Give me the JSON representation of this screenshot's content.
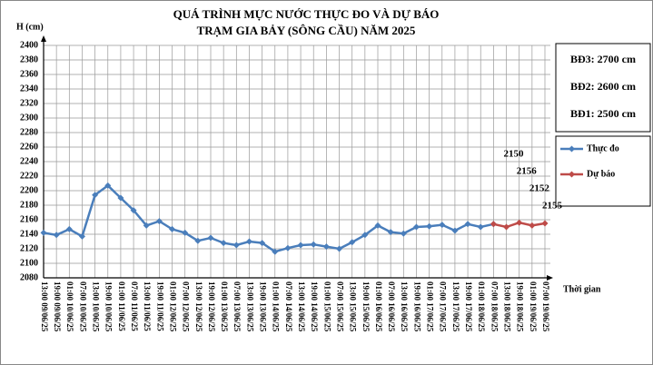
{
  "chart_data": {
    "type": "line",
    "title": "QUÁ TRÌNH MỰC NƯỚC THỰC ĐO VÀ DỰ BÁO",
    "subtitle": "TRẠM GIA BẢY (SÔNG CẦU) NĂM 2025",
    "ylabel": "H (cm)",
    "xlabel": "Thời gian",
    "alert_levels": [
      "BĐ3: 2700 cm",
      "BĐ2: 2600 cm",
      "BĐ1: 2500 cm"
    ],
    "categories": [
      "13:00 09/06/25",
      "19:00 09/06/25",
      "01:00 10/06/25",
      "07:00 10/06/25",
      "13:00 10/06/25",
      "19:00 10/06/25",
      "01:00 11/06/25",
      "07:00 11/06/25",
      "13:00 11/06/25",
      "19:00 11/06/25",
      "01:00 12/06/25",
      "07:00 12/06/25",
      "13:00 12/06/25",
      "19:00 12/06/25",
      "01:00 13/06/25",
      "07:00 13/06/25",
      "13:00 13/06/25",
      "19:00 13/06/25",
      "01:00 14/06/25",
      "07:00 14/06/25",
      "13:00 14/06/25",
      "19:00 14/06/25",
      "01:00 15/06/25",
      "07:00 15/06/25",
      "13:00 15/06/25",
      "19:00 15/06/25",
      "01:00 16/06/25",
      "07:00 16/06/25",
      "13:00 16/06/25",
      "19:00 16/06/25",
      "01:00 17/06/25",
      "07:00 17/06/25",
      "13:00 17/06/25",
      "19:00 17/06/25",
      "01:00 18/06/25",
      "07:00 18/06/25",
      "13:00 18/06/25",
      "19:00 18/06/25",
      "01:00 19/06/25",
      "07:00 19/06/25"
    ],
    "series": [
      {
        "name": "Thực đo",
        "color": "#4a7ebb",
        "values": [
          2142,
          2139,
          2147,
          2137,
          2194,
          2207,
          2190,
          2173,
          2152,
          2158,
          2147,
          2142,
          2131,
          2135,
          2128,
          2125,
          2130,
          2128,
          2116,
          2121,
          2125,
          2126,
          2123,
          2120,
          2129,
          2139,
          2152,
          2143,
          2141,
          2150,
          2151,
          2153,
          2145,
          2154,
          2150,
          2154,
          null,
          null,
          null,
          null
        ]
      },
      {
        "name": "Dự báo",
        "color": "#be4b48",
        "values": [
          null,
          null,
          null,
          null,
          null,
          null,
          null,
          null,
          null,
          null,
          null,
          null,
          null,
          null,
          null,
          null,
          null,
          null,
          null,
          null,
          null,
          null,
          null,
          null,
          null,
          null,
          null,
          null,
          null,
          null,
          null,
          null,
          null,
          null,
          null,
          2154,
          2150,
          2156,
          2152,
          2155
        ]
      }
    ],
    "annotated_points": [
      36,
      37,
      38,
      39
    ],
    "ylim": [
      2080,
      2400
    ],
    "yticks": [
      2080,
      2100,
      2120,
      2140,
      2160,
      2180,
      2200,
      2220,
      2240,
      2260,
      2280,
      2300,
      2320,
      2340,
      2360,
      2380,
      2400
    ],
    "grid": true,
    "legend": "right"
  }
}
